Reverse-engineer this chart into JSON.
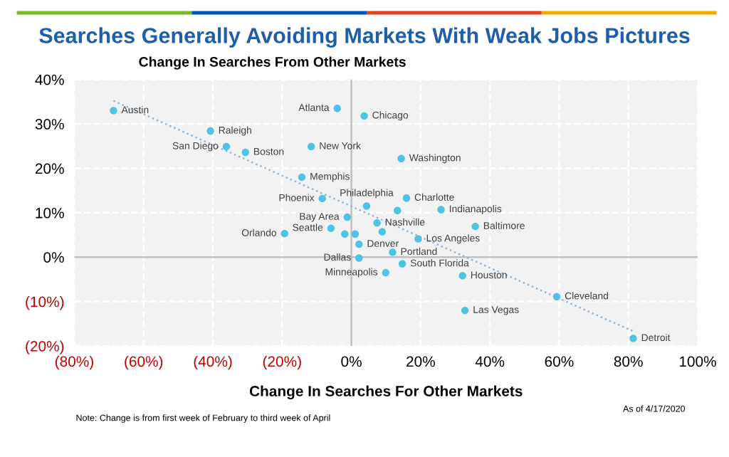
{
  "chart_data": {
    "type": "scatter",
    "title": "Searches Generally Avoiding Markets With Weak Jobs Pictures",
    "ylabel": "Change In Searches From Other Markets",
    "xlabel": "Change In Searches For Other Markets",
    "series": [
      {
        "color": "#4dc3e6",
        "marker": "circle",
        "x": [
          -68.7,
          -4.1,
          3.7,
          -40.7,
          -36.1,
          -30.6,
          -11.6,
          14.4,
          -14.3,
          -8.4,
          4.4,
          15.9,
          13.3,
          25.9,
          -1.2,
          7.4,
          35.8,
          8.9,
          -19.3,
          -5.9,
          -1.9,
          1.1,
          2.2,
          19.3,
          11.9,
          2.2,
          14.7,
          9.9,
          32.1,
          59.3,
          32.8,
          81.4
        ],
        "values": [
          33.0,
          33.5,
          31.8,
          28.4,
          24.9,
          23.6,
          24.9,
          22.2,
          18.0,
          13.2,
          11.5,
          13.3,
          10.5,
          10.7,
          9.0,
          7.7,
          6.9,
          5.7,
          5.3,
          6.5,
          5.2,
          5.2,
          2.9,
          4.1,
          1.1,
          -0.2,
          -1.5,
          -3.5,
          -4.2,
          -8.9,
          -12.0,
          -18.3
        ]
      },
      {
        "type": "line",
        "color": "#8fb8dc",
        "line_style": "dotted",
        "x": [
          -68.7,
          81.4
        ],
        "values": [
          35.2,
          -16.7
        ]
      }
    ],
    "annotations": [
      {
        "text": "Austin",
        "x": -68.7,
        "y": 33.0
      },
      {
        "text": "Atlanta",
        "x": -4.1,
        "y": 33.5
      },
      {
        "text": "Chicago",
        "x": 3.7,
        "y": 31.8
      },
      {
        "text": "Raleigh",
        "x": -40.7,
        "y": 28.4
      },
      {
        "text": "San Diego",
        "x": -36.1,
        "y": 24.9
      },
      {
        "text": "Boston",
        "x": -30.6,
        "y": 23.6
      },
      {
        "text": "New York",
        "x": -11.6,
        "y": 24.9
      },
      {
        "text": "Washington",
        "x": 14.4,
        "y": 22.2
      },
      {
        "text": "Memphis",
        "x": -14.3,
        "y": 18.0
      },
      {
        "text": "Phoenix",
        "x": -8.4,
        "y": 13.2
      },
      {
        "text": "Philadelphia",
        "x": 4.4,
        "y": 11.5
      },
      {
        "text": "Charlotte",
        "x": 15.9,
        "y": 13.3
      },
      {
        "text": "Indianapolis",
        "x": 25.9,
        "y": 10.7
      },
      {
        "text": "Bay Area",
        "x": -1.2,
        "y": 9.0
      },
      {
        "text": "Nashville",
        "x": 7.4,
        "y": 7.7
      },
      {
        "text": "Baltimore",
        "x": 35.8,
        "y": 6.9
      },
      {
        "text": "Orlando",
        "x": -19.3,
        "y": 5.3
      },
      {
        "text": "Seattle",
        "x": -5.9,
        "y": 6.5
      },
      {
        "text": "Denver",
        "x": 2.2,
        "y": 2.9
      },
      {
        "text": "Los Angeles",
        "x": 19.3,
        "y": 4.1
      },
      {
        "text": "Portland",
        "x": 11.9,
        "y": 1.1
      },
      {
        "text": "Dallas",
        "x": 2.2,
        "y": -0.2
      },
      {
        "text": "South Florida",
        "x": 14.7,
        "y": -1.5
      },
      {
        "text": "Minneapolis",
        "x": 9.9,
        "y": -3.5
      },
      {
        "text": "Houston",
        "x": 32.1,
        "y": -4.2
      },
      {
        "text": "Cleveland",
        "x": 59.3,
        "y": -8.9
      },
      {
        "text": "Las Vegas",
        "x": 32.8,
        "y": -12.0
      },
      {
        "text": "Detroit",
        "x": 81.4,
        "y": -18.3
      },
      "Note: Change is from first week of February to third week of April",
      "As of 4/17/2020"
    ],
    "xlim": [
      -80,
      100
    ],
    "xticks": [
      {
        "value": -80,
        "label": "(80%)"
      },
      {
        "value": -60,
        "label": "(60%)"
      },
      {
        "value": -40,
        "label": "(40%)"
      },
      {
        "value": -20,
        "label": "(20%)"
      },
      {
        "value": 0,
        "label": "0%"
      },
      {
        "value": 20,
        "label": "20%"
      },
      {
        "value": 40,
        "label": "40%"
      },
      {
        "value": 60,
        "label": "60%"
      },
      {
        "value": 80,
        "label": "80%"
      },
      {
        "value": 100,
        "label": "100%"
      }
    ],
    "ylim": [
      -20,
      40
    ],
    "yticks": [
      {
        "value": -20,
        "label": "(20%)"
      },
      {
        "value": -10,
        "label": "(10%)"
      },
      {
        "value": 0,
        "label": "0%"
      },
      {
        "value": 10,
        "label": "10%"
      },
      {
        "value": 20,
        "label": "20%"
      },
      {
        "value": 30,
        "label": "30%"
      },
      {
        "value": 40,
        "label": "40%"
      }
    ],
    "grid": true,
    "legend": false
  }
}
